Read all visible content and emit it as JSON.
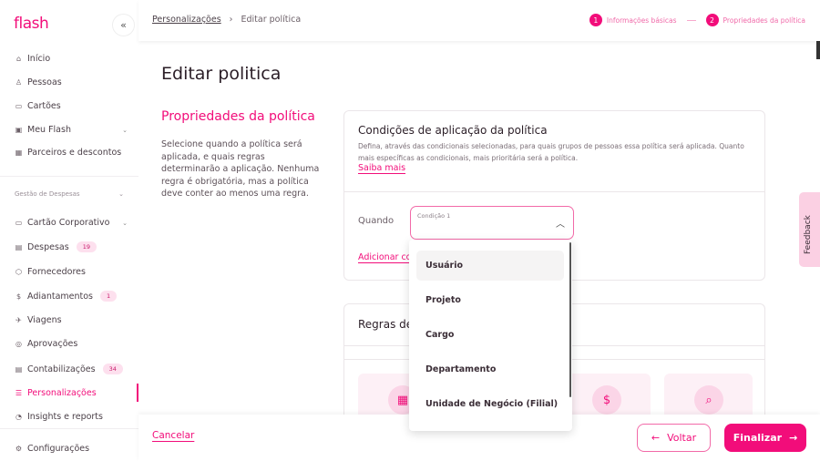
{
  "app": {
    "logo": "flash",
    "collapse_icon": "«"
  },
  "sidebar": {
    "items": [
      {
        "label": "Início",
        "icon": "home-icon"
      },
      {
        "label": "Pessoas",
        "icon": "people-icon"
      },
      {
        "label": "Cartões",
        "icon": "card-icon"
      },
      {
        "label": "Meu Flash",
        "icon": "wallet-icon"
      },
      {
        "label": "Parceiros e descontos",
        "icon": "store-icon"
      }
    ],
    "section": "Gestão de Despesas",
    "expense_items": [
      {
        "label": "Cartão Corporativo",
        "icon": "card-icon"
      },
      {
        "label": "Despesas",
        "icon": "receipt-icon",
        "badge": "19"
      },
      {
        "label": "Fornecedores",
        "icon": "box-icon"
      },
      {
        "label": "Adiantamentos",
        "icon": "dollar-icon",
        "badge": "1"
      },
      {
        "label": "Viagens",
        "icon": "plane-icon"
      },
      {
        "label": "Aprovações",
        "icon": "check-circle-icon"
      },
      {
        "label": "Contabilizações",
        "icon": "ledger-icon",
        "badge": "34"
      },
      {
        "label": "Personalizações",
        "icon": "sliders-icon",
        "active": true
      },
      {
        "label": "Insights e reports",
        "icon": "chart-pie-icon"
      }
    ],
    "settings": {
      "label": "Configurações",
      "icon": "gear-icon"
    }
  },
  "breadcrumb": {
    "parent": "Personalizações",
    "current": "Editar política"
  },
  "steps": [
    {
      "num": "1",
      "label": "Informações básicas"
    },
    {
      "num": "2",
      "label": "Propriedades da política"
    }
  ],
  "page": {
    "title": "Editar politica",
    "side_title": "Propriedades da política",
    "side_desc": "Selecione quando a política será aplicada, e quais regras determinarão a aplicação. Nenhuma regra é obrigatória, mas a política deve conter ao menos uma regra."
  },
  "conditions": {
    "title": "Condições de aplicação da política",
    "desc": "Defina, através das condicionais selecionadas, para quais grupos de pessoas essa política será aplicada. Quanto mais específicas as condicionais, mais prioritária será a política.",
    "learn_more": "Saiba mais",
    "when": "Quando",
    "select_label": "Condição 1",
    "add": "Adicionar co",
    "options": [
      "Usuário",
      "Projeto",
      "Cargo",
      "Departamento",
      "Unidade de Negócio (Filial)"
    ],
    "highlighted": "Usuário"
  },
  "rules": {
    "title": "Regras de"
  },
  "footer": {
    "cancel": "Cancelar",
    "back": "Voltar",
    "finish": "Finalizar"
  },
  "feedback": "Feedback",
  "colors": {
    "brand": "#f20d7a"
  }
}
